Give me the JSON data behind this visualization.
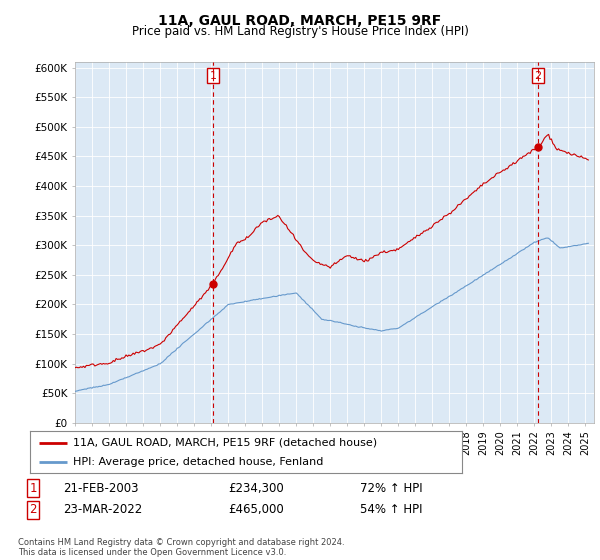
{
  "title": "11A, GAUL ROAD, MARCH, PE15 9RF",
  "subtitle": "Price paid vs. HM Land Registry's House Price Index (HPI)",
  "ylabel_ticks": [
    "£0",
    "£50K",
    "£100K",
    "£150K",
    "£200K",
    "£250K",
    "£300K",
    "£350K",
    "£400K",
    "£450K",
    "£500K",
    "£550K",
    "£600K"
  ],
  "ytick_values": [
    0,
    50000,
    100000,
    150000,
    200000,
    250000,
    300000,
    350000,
    400000,
    450000,
    500000,
    550000,
    600000
  ],
  "ylim": [
    0,
    610000
  ],
  "xlim_start": 1995.0,
  "xlim_end": 2025.5,
  "bg_color": "#dce9f5",
  "red_line_color": "#cc0000",
  "blue_line_color": "#6699cc",
  "marker1_date": 2003.12,
  "marker1_value": 234300,
  "marker2_date": 2022.21,
  "marker2_value": 465000,
  "annotation1": [
    "1",
    "21-FEB-2003",
    "£234,300",
    "72% ↑ HPI"
  ],
  "annotation2": [
    "2",
    "23-MAR-2022",
    "£465,000",
    "54% ↑ HPI"
  ],
  "legend_line1": "11A, GAUL ROAD, MARCH, PE15 9RF (detached house)",
  "legend_line2": "HPI: Average price, detached house, Fenland",
  "footer": "Contains HM Land Registry data © Crown copyright and database right 2024.\nThis data is licensed under the Open Government Licence v3.0.",
  "title_fontsize": 10,
  "subtitle_fontsize": 8.5
}
